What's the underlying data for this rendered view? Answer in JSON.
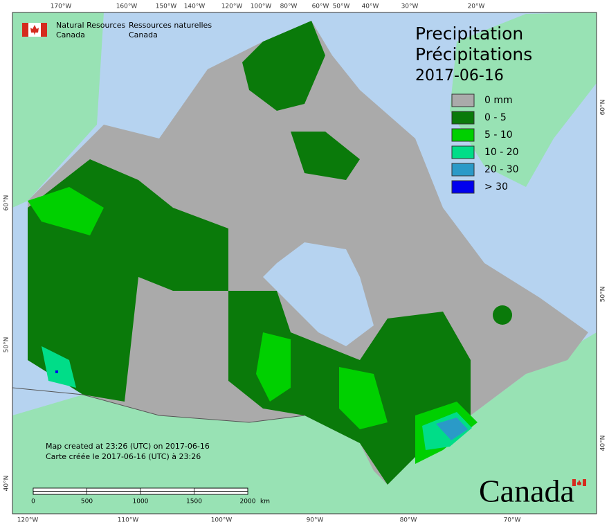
{
  "agency": {
    "en_line1": "Natural Resources",
    "en_line2": "Canada",
    "fr_line1": "Ressources naturelles",
    "fr_line2": "Canada"
  },
  "title": {
    "line1": "Precipitation",
    "line2": "Précipitations",
    "date": "2017-06-16"
  },
  "legend": [
    {
      "label": "0 mm",
      "color": "#aaaaaa"
    },
    {
      "label": "0 - 5",
      "color": "#0a7a0a"
    },
    {
      "label": "5 - 10",
      "color": "#00d000"
    },
    {
      "label": "10 - 20",
      "color": "#00dd88"
    },
    {
      "label": "20 - 30",
      "color": "#2a9ac8"
    },
    {
      "label": "> 30",
      "color": "#0000ee"
    }
  ],
  "credits": [
    "Map created at 23:26 (UTC) on 2017-06-16",
    "Carte créée le 2017-06-16 (UTC) à 23:26"
  ],
  "scale_bar": {
    "labels": [
      "0",
      "500",
      "1000",
      "1500",
      "2000"
    ],
    "unit": "km"
  },
  "graticule": {
    "top": [
      "170°W",
      "160°W",
      "150°W",
      "140°W",
      "120°W",
      "100°W",
      "80°W",
      "60°W",
      "50°W",
      "40°W",
      "30°W",
      "20°W"
    ],
    "bottom": [
      "120°W",
      "110°W",
      "100°W",
      "90°W",
      "80°W",
      "70°W"
    ],
    "left": [
      "60°N",
      "50°N",
      "40°N"
    ],
    "right": [
      "60°N",
      "50°N",
      "40°N"
    ]
  },
  "wordmark": "Canada"
}
